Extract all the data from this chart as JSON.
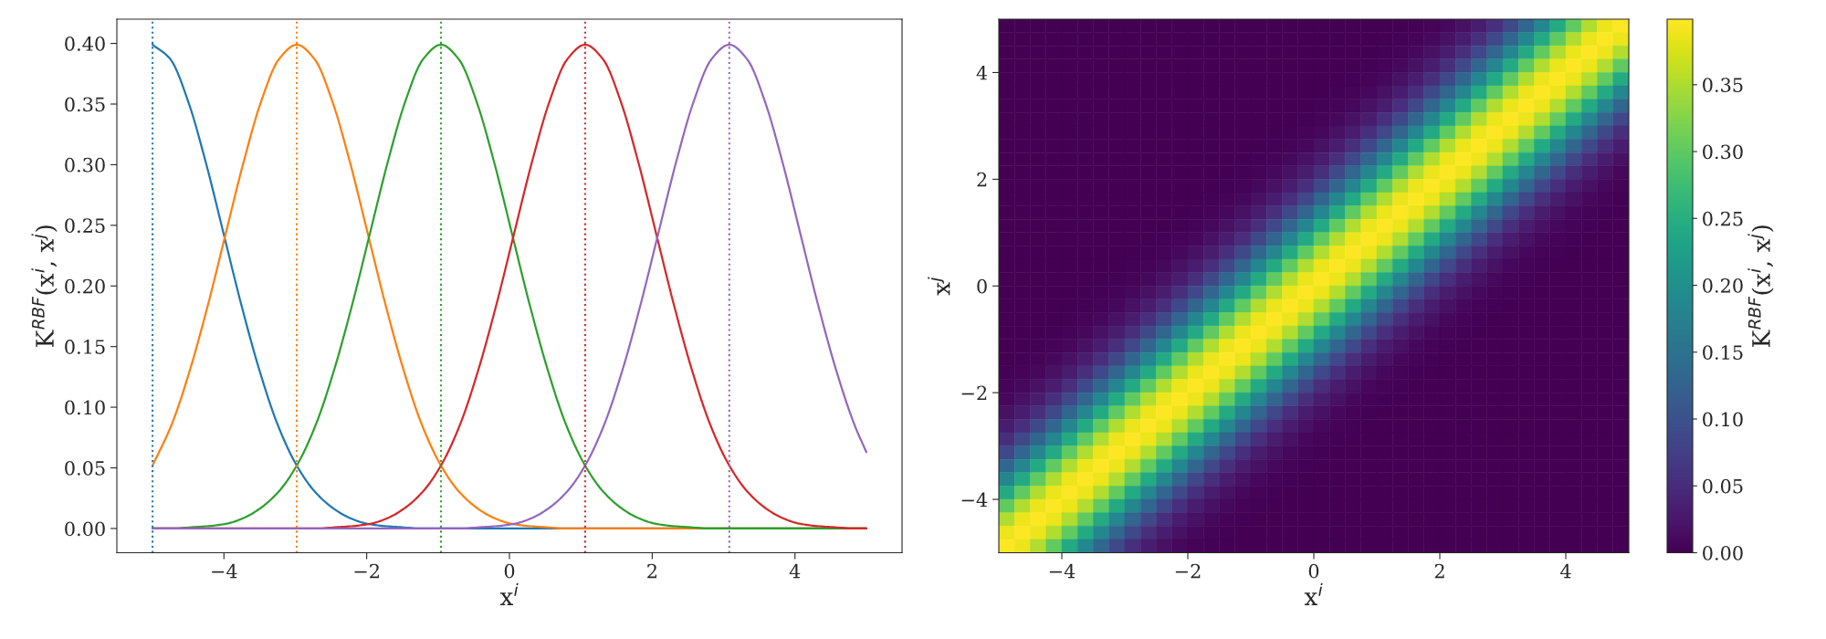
{
  "chart_data": [
    {
      "type": "line",
      "xlabel": "x$^{i}$",
      "ylabel": "K$^{RBF}$(x$^{i}$, x$^{j}$)",
      "xlim": [
        -5.5,
        5.5
      ],
      "ylim": [
        -0.02,
        0.42
      ],
      "xticks": [
        -4,
        -2,
        0,
        2,
        4
      ],
      "yticks": [
        {
          "value": 0,
          "label": "0.00"
        },
        {
          "value": 0.05,
          "label": "0.05"
        },
        {
          "value": 0.1,
          "label": "0.10"
        },
        {
          "value": 0.15,
          "label": "0.15"
        },
        {
          "value": 0.2,
          "label": "0.20"
        },
        {
          "value": 0.25,
          "label": "0.25"
        },
        {
          "value": 0.3,
          "label": "0.30"
        },
        {
          "value": 0.35,
          "label": "0.35"
        },
        {
          "value": 0.4,
          "label": "0.40"
        }
      ],
      "series": [
        {
          "color": "#1f77b4",
          "x": [
            -5,
            -4.75,
            -4.5,
            -4.25,
            -4,
            -3.75,
            -3.5,
            -3.25,
            -3,
            -2.75,
            -2.5,
            -2.25,
            -2,
            -1.75,
            -1.5,
            -1.25,
            5
          ],
          "values": [
            0.399,
            0.387,
            0.352,
            0.301,
            0.242,
            0.183,
            0.13,
            0.086,
            0.054,
            0.032,
            0.018,
            0.009,
            0.004,
            0.002,
            0.001,
            0,
            0
          ]
        },
        {
          "color": "#ff7f0e",
          "x": [
            -5,
            -4.73,
            -4.48,
            -4.23,
            -3.98,
            -3.73,
            -3.48,
            -3.23,
            -2.98,
            -2.73,
            -2.48,
            -2.23,
            -1.98,
            -1.73,
            -1.48,
            -1.23,
            -0.98,
            -0.73,
            -0.48,
            -0.23,
            0.02,
            0.27,
            0.52,
            0.77,
            5
          ],
          "values": [
            0.052,
            0.086,
            0.13,
            0.183,
            0.242,
            0.301,
            0.352,
            0.387,
            0.399,
            0.387,
            0.352,
            0.301,
            0.242,
            0.183,
            0.13,
            0.086,
            0.054,
            0.032,
            0.018,
            0.009,
            0.004,
            0.002,
            0.001,
            0,
            0
          ]
        },
        {
          "color": "#2ca02c",
          "x": [
            -5,
            -4.71,
            -4.46,
            -4.21,
            -3.96,
            -3.71,
            -3.46,
            -3.21,
            -2.96,
            -2.71,
            -2.46,
            -2.21,
            -1.96,
            -1.71,
            -1.46,
            -1.21,
            -0.96,
            -0.71,
            -0.46,
            -0.21,
            0.04,
            0.29,
            0.54,
            0.79,
            1.04,
            1.29,
            1.54,
            1.79,
            2.04,
            2.29,
            2.54,
            2.79,
            5
          ],
          "values": [
            0,
            0,
            0.001,
            0.002,
            0.004,
            0.009,
            0.018,
            0.032,
            0.054,
            0.086,
            0.13,
            0.183,
            0.242,
            0.301,
            0.352,
            0.387,
            0.399,
            0.387,
            0.352,
            0.301,
            0.242,
            0.183,
            0.13,
            0.086,
            0.054,
            0.032,
            0.018,
            0.009,
            0.004,
            0.002,
            0.001,
            0,
            0
          ]
        },
        {
          "color": "#d62728",
          "x": [
            -5,
            -2.69,
            -2.44,
            -2.19,
            -1.94,
            -1.69,
            -1.44,
            -1.19,
            -0.94,
            -0.69,
            -0.44,
            -0.19,
            0.06,
            0.31,
            0.56,
            0.81,
            1.06,
            1.31,
            1.56,
            1.81,
            2.06,
            2.31,
            2.56,
            2.81,
            3.06,
            3.31,
            3.56,
            3.81,
            4.06,
            4.31,
            4.56,
            4.81,
            5
          ],
          "values": [
            0,
            0,
            0.001,
            0.002,
            0.004,
            0.009,
            0.018,
            0.032,
            0.054,
            0.086,
            0.13,
            0.183,
            0.242,
            0.301,
            0.352,
            0.387,
            0.399,
            0.387,
            0.352,
            0.301,
            0.242,
            0.183,
            0.13,
            0.086,
            0.054,
            0.032,
            0.018,
            0.009,
            0.004,
            0.002,
            0.001,
            0,
            0
          ]
        },
        {
          "color": "#9467bd",
          "x": [
            -5,
            -0.67,
            -0.42,
            -0.17,
            0.08,
            0.33,
            0.58,
            0.83,
            1.08,
            1.33,
            1.58,
            1.83,
            2.08,
            2.33,
            2.58,
            2.83,
            3.08,
            3.33,
            3.58,
            3.83,
            4.08,
            4.33,
            4.58,
            4.83,
            5
          ],
          "values": [
            0,
            0,
            0.001,
            0.002,
            0.004,
            0.009,
            0.018,
            0.032,
            0.054,
            0.086,
            0.13,
            0.183,
            0.242,
            0.301,
            0.352,
            0.387,
            0.399,
            0.387,
            0.352,
            0.301,
            0.242,
            0.183,
            0.13,
            0.086,
            0.063
          ]
        }
      ],
      "ref_lines": [
        {
          "axis": "x",
          "value": -5,
          "color": "#1f77b4",
          "line_style": "dotted"
        },
        {
          "axis": "x",
          "value": -2.98,
          "color": "#ff7f0e",
          "line_style": "dotted"
        },
        {
          "axis": "x",
          "value": -0.96,
          "color": "#2ca02c",
          "line_style": "dotted"
        },
        {
          "axis": "x",
          "value": 1.06,
          "color": "#d62728",
          "line_style": "dotted"
        },
        {
          "axis": "x",
          "value": 3.08,
          "color": "#9467bd",
          "line_style": "dotted"
        }
      ]
    },
    {
      "type": "heatmap",
      "xlabel": "x$^{i}$",
      "ylabel": "x$^{j}$",
      "clabel": "K$^{RBF}$(x$^{i}$, x$^{j}$)",
      "xlim": [
        -5,
        5
      ],
      "ylim": [
        -5,
        5
      ],
      "xticks": [
        -4,
        -2,
        0,
        2,
        4
      ],
      "yticks": [
        -4,
        -2,
        0,
        2,
        4
      ],
      "clim": [
        0,
        0.399
      ],
      "cticks": [
        {
          "value": 0,
          "label": "0.00"
        },
        {
          "value": 0.05,
          "label": "0.05"
        },
        {
          "value": 0.1,
          "label": "0.10"
        },
        {
          "value": 0.15,
          "label": "0.15"
        },
        {
          "value": 0.2,
          "label": "0.20"
        },
        {
          "value": 0.25,
          "label": "0.25"
        },
        {
          "value": 0.3,
          "label": "0.30"
        },
        {
          "value": 0.35,
          "label": "0.35"
        }
      ],
      "cells": [
        [
          0,
          0,
          0,
          0,
          0,
          0,
          0,
          0,
          0,
          0,
          0,
          0,
          0,
          0,
          0,
          0,
          0,
          0,
          0,
          0,
          0,
          0,
          0,
          0,
          0,
          0.001,
          0.002,
          0.004,
          0.009,
          0.018,
          0.032,
          0.054,
          0.086,
          0.13,
          0.183,
          0.242,
          0.301,
          0.352,
          0.387,
          0.399
        ],
        [
          0,
          0,
          0,
          0,
          0,
          0,
          0,
          0,
          0,
          0,
          0,
          0,
          0,
          0,
          0,
          0,
          0,
          0,
          0,
          0,
          0,
          0,
          0,
          0,
          0.001,
          0.002,
          0.004,
          0.009,
          0.018,
          0.032,
          0.054,
          0.086,
          0.13,
          0.183,
          0.242,
          0.301,
          0.352,
          0.387,
          0.399,
          0.387
        ],
        [
          0,
          0,
          0,
          0,
          0,
          0,
          0,
          0,
          0,
          0,
          0,
          0,
          0,
          0,
          0,
          0,
          0,
          0,
          0,
          0,
          0,
          0,
          0,
          0.001,
          0.002,
          0.004,
          0.009,
          0.018,
          0.032,
          0.054,
          0.086,
          0.13,
          0.183,
          0.242,
          0.301,
          0.352,
          0.387,
          0.399,
          0.387,
          0.352
        ],
        [
          0,
          0,
          0,
          0,
          0,
          0,
          0,
          0,
          0,
          0,
          0,
          0,
          0,
          0,
          0,
          0,
          0,
          0,
          0,
          0,
          0,
          0,
          0.001,
          0.002,
          0.004,
          0.009,
          0.018,
          0.032,
          0.054,
          0.086,
          0.13,
          0.183,
          0.242,
          0.301,
          0.352,
          0.387,
          0.399,
          0.387,
          0.352,
          0.301
        ],
        [
          0,
          0,
          0,
          0,
          0,
          0,
          0,
          0,
          0,
          0,
          0,
          0,
          0,
          0,
          0,
          0,
          0,
          0,
          0,
          0,
          0,
          0.001,
          0.002,
          0.004,
          0.009,
          0.018,
          0.032,
          0.054,
          0.086,
          0.13,
          0.183,
          0.242,
          0.301,
          0.352,
          0.387,
          0.399,
          0.387,
          0.352,
          0.301,
          0.242
        ],
        [
          0,
          0,
          0,
          0,
          0,
          0,
          0,
          0,
          0,
          0,
          0,
          0,
          0,
          0,
          0,
          0,
          0,
          0,
          0,
          0,
          0.001,
          0.002,
          0.004,
          0.009,
          0.018,
          0.032,
          0.054,
          0.086,
          0.13,
          0.183,
          0.242,
          0.301,
          0.352,
          0.387,
          0.399,
          0.387,
          0.352,
          0.301,
          0.242,
          0.183
        ],
        [
          0,
          0,
          0,
          0,
          0,
          0,
          0,
          0,
          0,
          0,
          0,
          0,
          0,
          0,
          0,
          0,
          0,
          0,
          0,
          0.001,
          0.002,
          0.004,
          0.009,
          0.018,
          0.032,
          0.054,
          0.086,
          0.13,
          0.183,
          0.242,
          0.301,
          0.352,
          0.387,
          0.399,
          0.387,
          0.352,
          0.301,
          0.242,
          0.183,
          0.13
        ],
        [
          0,
          0,
          0,
          0,
          0,
          0,
          0,
          0,
          0,
          0,
          0,
          0,
          0,
          0,
          0,
          0,
          0,
          0,
          0.001,
          0.002,
          0.004,
          0.009,
          0.018,
          0.032,
          0.054,
          0.086,
          0.13,
          0.183,
          0.242,
          0.301,
          0.352,
          0.387,
          0.399,
          0.387,
          0.352,
          0.301,
          0.242,
          0.183,
          0.13,
          0.086
        ],
        [
          0,
          0,
          0,
          0,
          0,
          0,
          0,
          0,
          0,
          0,
          0,
          0,
          0,
          0,
          0,
          0,
          0,
          0.001,
          0.002,
          0.004,
          0.009,
          0.018,
          0.032,
          0.054,
          0.086,
          0.13,
          0.183,
          0.242,
          0.301,
          0.352,
          0.387,
          0.399,
          0.387,
          0.352,
          0.301,
          0.242,
          0.183,
          0.13,
          0.086,
          0.054
        ],
        [
          0,
          0,
          0,
          0,
          0,
          0,
          0,
          0,
          0,
          0,
          0,
          0,
          0,
          0,
          0,
          0,
          0.001,
          0.002,
          0.004,
          0.009,
          0.018,
          0.032,
          0.054,
          0.086,
          0.13,
          0.183,
          0.242,
          0.301,
          0.352,
          0.387,
          0.399,
          0.387,
          0.352,
          0.301,
          0.242,
          0.183,
          0.13,
          0.086,
          0.054,
          0.032
        ],
        [
          0,
          0,
          0,
          0,
          0,
          0,
          0,
          0,
          0,
          0,
          0,
          0,
          0,
          0,
          0,
          0.001,
          0.002,
          0.004,
          0.009,
          0.018,
          0.032,
          0.054,
          0.086,
          0.13,
          0.183,
          0.242,
          0.301,
          0.352,
          0.387,
          0.399,
          0.387,
          0.352,
          0.301,
          0.242,
          0.183,
          0.13,
          0.086,
          0.054,
          0.032,
          0.018
        ],
        [
          0,
          0,
          0,
          0,
          0,
          0,
          0,
          0,
          0,
          0,
          0,
          0,
          0,
          0,
          0.001,
          0.002,
          0.004,
          0.009,
          0.018,
          0.032,
          0.054,
          0.086,
          0.13,
          0.183,
          0.242,
          0.301,
          0.352,
          0.387,
          0.399,
          0.387,
          0.352,
          0.301,
          0.242,
          0.183,
          0.13,
          0.086,
          0.054,
          0.032,
          0.018,
          0.009
        ],
        [
          0,
          0,
          0,
          0,
          0,
          0,
          0,
          0,
          0,
          0,
          0,
          0,
          0,
          0.001,
          0.002,
          0.004,
          0.009,
          0.018,
          0.032,
          0.054,
          0.086,
          0.13,
          0.183,
          0.242,
          0.301,
          0.352,
          0.387,
          0.399,
          0.387,
          0.352,
          0.301,
          0.242,
          0.183,
          0.13,
          0.086,
          0.054,
          0.032,
          0.018,
          0.009,
          0.004
        ],
        [
          0,
          0,
          0,
          0,
          0,
          0,
          0,
          0,
          0,
          0,
          0,
          0,
          0.001,
          0.002,
          0.004,
          0.009,
          0.018,
          0.032,
          0.054,
          0.086,
          0.13,
          0.183,
          0.242,
          0.301,
          0.352,
          0.387,
          0.399,
          0.387,
          0.352,
          0.301,
          0.242,
          0.183,
          0.13,
          0.086,
          0.054,
          0.032,
          0.018,
          0.009,
          0.004,
          0.002
        ],
        [
          0,
          0,
          0,
          0,
          0,
          0,
          0,
          0,
          0,
          0,
          0,
          0.001,
          0.002,
          0.004,
          0.009,
          0.018,
          0.032,
          0.054,
          0.086,
          0.13,
          0.183,
          0.242,
          0.301,
          0.352,
          0.387,
          0.399,
          0.387,
          0.352,
          0.301,
          0.242,
          0.183,
          0.13,
          0.086,
          0.054,
          0.032,
          0.018,
          0.009,
          0.004,
          0.002,
          0.001
        ],
        [
          0,
          0,
          0,
          0,
          0,
          0,
          0,
          0,
          0,
          0,
          0.001,
          0.002,
          0.004,
          0.009,
          0.018,
          0.032,
          0.054,
          0.086,
          0.13,
          0.183,
          0.242,
          0.301,
          0.352,
          0.387,
          0.399,
          0.387,
          0.352,
          0.301,
          0.242,
          0.183,
          0.13,
          0.086,
          0.054,
          0.032,
          0.018,
          0.009,
          0.004,
          0.002,
          0.001,
          0
        ],
        [
          0,
          0,
          0,
          0,
          0,
          0,
          0,
          0,
          0,
          0.001,
          0.002,
          0.004,
          0.009,
          0.018,
          0.032,
          0.054,
          0.086,
          0.13,
          0.183,
          0.242,
          0.301,
          0.352,
          0.387,
          0.399,
          0.387,
          0.352,
          0.301,
          0.242,
          0.183,
          0.13,
          0.086,
          0.054,
          0.032,
          0.018,
          0.009,
          0.004,
          0.002,
          0.001,
          0,
          0
        ],
        [
          0,
          0,
          0,
          0,
          0,
          0,
          0,
          0,
          0.001,
          0.002,
          0.004,
          0.009,
          0.018,
          0.032,
          0.054,
          0.086,
          0.13,
          0.183,
          0.242,
          0.301,
          0.352,
          0.387,
          0.399,
          0.387,
          0.352,
          0.301,
          0.242,
          0.183,
          0.13,
          0.086,
          0.054,
          0.032,
          0.018,
          0.009,
          0.004,
          0.002,
          0.001,
          0,
          0,
          0
        ],
        [
          0,
          0,
          0,
          0,
          0,
          0,
          0,
          0.001,
          0.002,
          0.004,
          0.009,
          0.018,
          0.032,
          0.054,
          0.086,
          0.13,
          0.183,
          0.242,
          0.301,
          0.352,
          0.387,
          0.399,
          0.387,
          0.352,
          0.301,
          0.242,
          0.183,
          0.13,
          0.086,
          0.054,
          0.032,
          0.018,
          0.009,
          0.004,
          0.002,
          0.001,
          0,
          0,
          0,
          0
        ],
        [
          0,
          0,
          0,
          0,
          0,
          0,
          0.001,
          0.002,
          0.004,
          0.009,
          0.018,
          0.032,
          0.054,
          0.086,
          0.13,
          0.183,
          0.242,
          0.301,
          0.352,
          0.387,
          0.399,
          0.387,
          0.352,
          0.301,
          0.242,
          0.183,
          0.13,
          0.086,
          0.054,
          0.032,
          0.018,
          0.009,
          0.004,
          0.002,
          0.001,
          0,
          0,
          0,
          0,
          0
        ],
        [
          0,
          0,
          0,
          0,
          0,
          0.001,
          0.002,
          0.004,
          0.009,
          0.018,
          0.032,
          0.054,
          0.086,
          0.13,
          0.183,
          0.242,
          0.301,
          0.352,
          0.387,
          0.399,
          0.387,
          0.352,
          0.301,
          0.242,
          0.183,
          0.13,
          0.086,
          0.054,
          0.032,
          0.018,
          0.009,
          0.004,
          0.002,
          0.001,
          0,
          0,
          0,
          0,
          0,
          0
        ],
        [
          0,
          0,
          0,
          0,
          0.001,
          0.002,
          0.004,
          0.009,
          0.018,
          0.032,
          0.054,
          0.086,
          0.13,
          0.183,
          0.242,
          0.301,
          0.352,
          0.387,
          0.399,
          0.387,
          0.352,
          0.301,
          0.242,
          0.183,
          0.13,
          0.086,
          0.054,
          0.032,
          0.018,
          0.009,
          0.004,
          0.002,
          0.001,
          0,
          0,
          0,
          0,
          0,
          0,
          0
        ],
        [
          0,
          0,
          0,
          0.001,
          0.002,
          0.004,
          0.009,
          0.018,
          0.032,
          0.054,
          0.086,
          0.13,
          0.183,
          0.242,
          0.301,
          0.352,
          0.387,
          0.399,
          0.387,
          0.352,
          0.301,
          0.242,
          0.183,
          0.13,
          0.086,
          0.054,
          0.032,
          0.018,
          0.009,
          0.004,
          0.002,
          0.001,
          0,
          0,
          0,
          0,
          0,
          0,
          0,
          0
        ],
        [
          0,
          0,
          0.001,
          0.002,
          0.004,
          0.009,
          0.018,
          0.032,
          0.054,
          0.086,
          0.13,
          0.183,
          0.242,
          0.301,
          0.352,
          0.387,
          0.399,
          0.387,
          0.352,
          0.301,
          0.242,
          0.183,
          0.13,
          0.086,
          0.054,
          0.032,
          0.018,
          0.009,
          0.004,
          0.002,
          0.001,
          0,
          0,
          0,
          0,
          0,
          0,
          0,
          0,
          0
        ],
        [
          0,
          0.001,
          0.002,
          0.004,
          0.009,
          0.018,
          0.032,
          0.054,
          0.086,
          0.13,
          0.183,
          0.242,
          0.301,
          0.352,
          0.387,
          0.399,
          0.387,
          0.352,
          0.301,
          0.242,
          0.183,
          0.13,
          0.086,
          0.054,
          0.032,
          0.018,
          0.009,
          0.004,
          0.002,
          0.001,
          0,
          0,
          0,
          0,
          0,
          0,
          0,
          0,
          0,
          0
        ],
        [
          0.001,
          0.002,
          0.004,
          0.009,
          0.018,
          0.032,
          0.054,
          0.086,
          0.13,
          0.183,
          0.242,
          0.301,
          0.352,
          0.387,
          0.399,
          0.387,
          0.352,
          0.301,
          0.242,
          0.183,
          0.13,
          0.086,
          0.054,
          0.032,
          0.018,
          0.009,
          0.004,
          0.002,
          0.001,
          0,
          0,
          0,
          0,
          0,
          0,
          0,
          0,
          0,
          0,
          0
        ],
        [
          0.002,
          0.004,
          0.009,
          0.018,
          0.032,
          0.054,
          0.086,
          0.13,
          0.183,
          0.242,
          0.301,
          0.352,
          0.387,
          0.399,
          0.387,
          0.352,
          0.301,
          0.242,
          0.183,
          0.13,
          0.086,
          0.054,
          0.032,
          0.018,
          0.009,
          0.004,
          0.002,
          0.001,
          0,
          0,
          0,
          0,
          0,
          0,
          0,
          0,
          0,
          0,
          0,
          0
        ],
        [
          0.004,
          0.009,
          0.018,
          0.032,
          0.054,
          0.086,
          0.13,
          0.183,
          0.242,
          0.301,
          0.352,
          0.387,
          0.399,
          0.387,
          0.352,
          0.301,
          0.242,
          0.183,
          0.13,
          0.086,
          0.054,
          0.032,
          0.018,
          0.009,
          0.004,
          0.002,
          0.001,
          0,
          0,
          0,
          0,
          0,
          0,
          0,
          0,
          0,
          0,
          0,
          0,
          0
        ],
        [
          0.009,
          0.018,
          0.032,
          0.054,
          0.086,
          0.13,
          0.183,
          0.242,
          0.301,
          0.352,
          0.387,
          0.399,
          0.387,
          0.352,
          0.301,
          0.242,
          0.183,
          0.13,
          0.086,
          0.054,
          0.032,
          0.018,
          0.009,
          0.004,
          0.002,
          0.001,
          0,
          0,
          0,
          0,
          0,
          0,
          0,
          0,
          0,
          0,
          0,
          0,
          0,
          0
        ],
        [
          0.018,
          0.032,
          0.054,
          0.086,
          0.13,
          0.183,
          0.242,
          0.301,
          0.352,
          0.387,
          0.399,
          0.387,
          0.352,
          0.301,
          0.242,
          0.183,
          0.13,
          0.086,
          0.054,
          0.032,
          0.018,
          0.009,
          0.004,
          0.002,
          0.001,
          0,
          0,
          0,
          0,
          0,
          0,
          0,
          0,
          0,
          0,
          0,
          0,
          0,
          0,
          0
        ],
        [
          0.032,
          0.054,
          0.086,
          0.13,
          0.183,
          0.242,
          0.301,
          0.352,
          0.387,
          0.399,
          0.387,
          0.352,
          0.301,
          0.242,
          0.183,
          0.13,
          0.086,
          0.054,
          0.032,
          0.018,
          0.009,
          0.004,
          0.002,
          0.001,
          0,
          0,
          0,
          0,
          0,
          0,
          0,
          0,
          0,
          0,
          0,
          0,
          0,
          0,
          0,
          0
        ],
        [
          0.054,
          0.086,
          0.13,
          0.183,
          0.242,
          0.301,
          0.352,
          0.387,
          0.399,
          0.387,
          0.352,
          0.301,
          0.242,
          0.183,
          0.13,
          0.086,
          0.054,
          0.032,
          0.018,
          0.009,
          0.004,
          0.002,
          0.001,
          0,
          0,
          0,
          0,
          0,
          0,
          0,
          0,
          0,
          0,
          0,
          0,
          0,
          0,
          0,
          0,
          0
        ],
        [
          0.086,
          0.13,
          0.183,
          0.242,
          0.301,
          0.352,
          0.387,
          0.399,
          0.387,
          0.352,
          0.301,
          0.242,
          0.183,
          0.13,
          0.086,
          0.054,
          0.032,
          0.018,
          0.009,
          0.004,
          0.002,
          0.001,
          0,
          0,
          0,
          0,
          0,
          0,
          0,
          0,
          0,
          0,
          0,
          0,
          0,
          0,
          0,
          0,
          0,
          0
        ],
        [
          0.13,
          0.183,
          0.242,
          0.301,
          0.352,
          0.387,
          0.399,
          0.387,
          0.352,
          0.301,
          0.242,
          0.183,
          0.13,
          0.086,
          0.054,
          0.032,
          0.018,
          0.009,
          0.004,
          0.002,
          0.001,
          0,
          0,
          0,
          0,
          0,
          0,
          0,
          0,
          0,
          0,
          0,
          0,
          0,
          0,
          0,
          0,
          0,
          0,
          0
        ],
        [
          0.183,
          0.242,
          0.301,
          0.352,
          0.387,
          0.399,
          0.387,
          0.352,
          0.301,
          0.242,
          0.183,
          0.13,
          0.086,
          0.054,
          0.032,
          0.018,
          0.009,
          0.004,
          0.002,
          0.001,
          0,
          0,
          0,
          0,
          0,
          0,
          0,
          0,
          0,
          0,
          0,
          0,
          0,
          0,
          0,
          0,
          0,
          0,
          0,
          0
        ],
        [
          0.242,
          0.301,
          0.352,
          0.387,
          0.399,
          0.387,
          0.352,
          0.301,
          0.242,
          0.183,
          0.13,
          0.086,
          0.054,
          0.032,
          0.018,
          0.009,
          0.004,
          0.002,
          0.001,
          0,
          0,
          0,
          0,
          0,
          0,
          0,
          0,
          0,
          0,
          0,
          0,
          0,
          0,
          0,
          0,
          0,
          0,
          0,
          0,
          0
        ],
        [
          0.301,
          0.352,
          0.387,
          0.399,
          0.387,
          0.352,
          0.301,
          0.242,
          0.183,
          0.13,
          0.086,
          0.054,
          0.032,
          0.018,
          0.009,
          0.004,
          0.002,
          0.001,
          0,
          0,
          0,
          0,
          0,
          0,
          0,
          0,
          0,
          0,
          0,
          0,
          0,
          0,
          0,
          0,
          0,
          0,
          0,
          0,
          0,
          0
        ],
        [
          0.352,
          0.387,
          0.399,
          0.387,
          0.352,
          0.301,
          0.242,
          0.183,
          0.13,
          0.086,
          0.054,
          0.032,
          0.018,
          0.009,
          0.004,
          0.002,
          0.001,
          0,
          0,
          0,
          0,
          0,
          0,
          0,
          0,
          0,
          0,
          0,
          0,
          0,
          0,
          0,
          0,
          0,
          0,
          0,
          0,
          0,
          0,
          0
        ],
        [
          0.387,
          0.399,
          0.387,
          0.352,
          0.301,
          0.242,
          0.183,
          0.13,
          0.086,
          0.054,
          0.032,
          0.018,
          0.009,
          0.004,
          0.002,
          0.001,
          0,
          0,
          0,
          0,
          0,
          0,
          0,
          0,
          0,
          0,
          0,
          0,
          0,
          0,
          0,
          0,
          0,
          0,
          0,
          0,
          0,
          0,
          0,
          0
        ],
        [
          0.399,
          0.387,
          0.352,
          0.301,
          0.242,
          0.183,
          0.13,
          0.086,
          0.054,
          0.032,
          0.018,
          0.009,
          0.004,
          0.002,
          0.001,
          0,
          0,
          0,
          0,
          0,
          0,
          0,
          0,
          0,
          0,
          0,
          0,
          0,
          0,
          0,
          0,
          0,
          0,
          0,
          0,
          0,
          0,
          0,
          0,
          0
        ]
      ]
    }
  ]
}
